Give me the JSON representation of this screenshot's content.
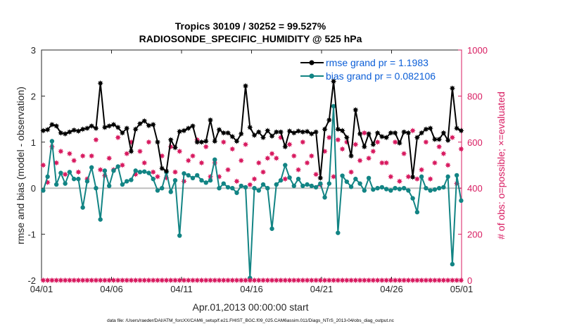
{
  "colors": {
    "rmse": "#000000",
    "bias": "#128484",
    "possible": "#d81b60",
    "evaluated": "#d81b60",
    "axis_right": "#d81b60",
    "legend_text": "#0b5ed7"
  },
  "chart_data": {
    "type": "line",
    "title": "Tropics 30109 / 30252 = 99.527%",
    "subtitle": "RADIOSONDE_SPECIFIC_HUMIDITY @ 525 hPa",
    "xlabel": "Apr.01,2013 00:00:00 start",
    "ylabel": "rmse and bias (model - observation)",
    "ylabel_right": "# of obs: o=possible; ×=evaluated",
    "xlim": [
      0,
      30
    ],
    "ylim": [
      -2,
      3
    ],
    "ylim_right": [
      0,
      1000
    ],
    "x_tick_labels": [
      "04/01",
      "04/06",
      "04/11",
      "04/16",
      "04/21",
      "04/26",
      "05/01"
    ],
    "x_tick_values": [
      0,
      5,
      10,
      15,
      20,
      25,
      30
    ],
    "y_ticks": [
      -2,
      -1,
      0,
      1,
      2,
      3
    ],
    "y_ticks_right": [
      0,
      200,
      400,
      600,
      800,
      1000
    ],
    "legend": {
      "rmse_label": "rmse grand pr = 1.1983",
      "bias_label": "bias grand pr = 0.082106"
    },
    "footnote": "data file: /Users/raeder/DAI/ATM_forcXX/CAM6_setup/f.e21.FHIST_BGC.f09_025.CAM6assim.011/Diags_NTrS_2013-04/obs_diag_output.nc",
    "series": [
      {
        "name": "rmse",
        "values": [
          1.25,
          1.27,
          1.38,
          1.35,
          1.2,
          1.18,
          1.22,
          1.26,
          1.24,
          1.28,
          1.3,
          1.35,
          1.3,
          2.28,
          1.32,
          1.35,
          1.38,
          1.32,
          1.2,
          1.3,
          0.8,
          1.28,
          1.4,
          1.46,
          1.36,
          1.38,
          1.0,
          0.43,
          0.37,
          1.05,
          0.88,
          1.23,
          1.25,
          1.3,
          1.35,
          1.0,
          1.0,
          1.02,
          1.48,
          1.02,
          1.27,
          1.2,
          1.2,
          1.12,
          1.02,
          1.18,
          2.22,
          1.32,
          1.15,
          1.22,
          1.1,
          1.25,
          1.13,
          1.22,
          1.22,
          0.9,
          1.24,
          1.2,
          1.24,
          1.22,
          1.23,
          1.18,
          1.22,
          0.22,
          1.28,
          1.48,
          2.32,
          1.28,
          1.25,
          1.1,
          0.7,
          1.7,
          1.18,
          0.9,
          1.18,
          0.95,
          1.2,
          1.12,
          1.1,
          1.2,
          1.2,
          0.98,
          1.22,
          1.2,
          0.24,
          1.1,
          1.2,
          1.28,
          1.3,
          1.06,
          1.06,
          1.2,
          1.04,
          2.17,
          1.3,
          1.25
        ]
      },
      {
        "name": "bias",
        "values": [
          -0.05,
          0.25,
          1.02,
          0.08,
          0.33,
          0.1,
          0.35,
          0.2,
          0.2,
          -0.42,
          0.15,
          0.45,
          0.0,
          -0.68,
          0.38,
          0.05,
          0.38,
          0.47,
          0.08,
          0.15,
          0.18,
          0.38,
          0.35,
          0.36,
          0.33,
          0.2,
          -0.05,
          0.0,
          0.35,
          -0.08,
          0.17,
          -1.03,
          0.32,
          0.28,
          0.22,
          0.28,
          0.17,
          0.12,
          0.17,
          0.62,
          0.0,
          0.1,
          0.02,
          0.0,
          -0.1,
          0.05,
          0.02,
          -1.95,
          0.0,
          -0.05,
          0.08,
          0.0,
          -0.88,
          0.08,
          0.17,
          0.5,
          0.23,
          0.05,
          0.2,
          0.05,
          0.08,
          0.05,
          0.02,
          0.1,
          -0.2,
          0.1,
          1.78,
          -0.97,
          0.27,
          0.14,
          0.03,
          0.2,
          0.1,
          -0.05,
          0.22,
          -0.03,
          0.0,
          0.02,
          -0.02,
          -0.05,
          0.0,
          -0.02,
          0.0,
          -0.05,
          -0.22,
          -0.52,
          0.25,
          0.0,
          -0.05,
          -0.03,
          0.0,
          0.02,
          0.25,
          -1.65,
          0.28,
          -0.27
        ]
      },
      {
        "name": "possible",
        "values": [
          500,
          425,
          580,
          510,
          560,
          460,
          550,
          520,
          470,
          540,
          440,
          540,
          610,
          480,
          455,
          530,
          480,
          620,
          500,
          550,
          600,
          460,
          560,
          510,
          600,
          470,
          450,
          540,
          445,
          580,
          470,
          560,
          430,
          520,
          540,
          610,
          510,
          580,
          450,
          510,
          450,
          600,
          480,
          570,
          430,
          520,
          590,
          415,
          440,
          510,
          470,
          530,
          550,
          530,
          620,
          440,
          590,
          540,
          480,
          600,
          510,
          540,
          460,
          415,
          560,
          620,
          450,
          610,
          570,
          600,
          470,
          590,
          520,
          640,
          530,
          560,
          600,
          510,
          510,
          450,
          600,
          430,
          550,
          450,
          650,
          440,
          480,
          600,
          440,
          510,
          580,
          550,
          500,
          620,
          420,
          570
        ]
      }
    ]
  }
}
